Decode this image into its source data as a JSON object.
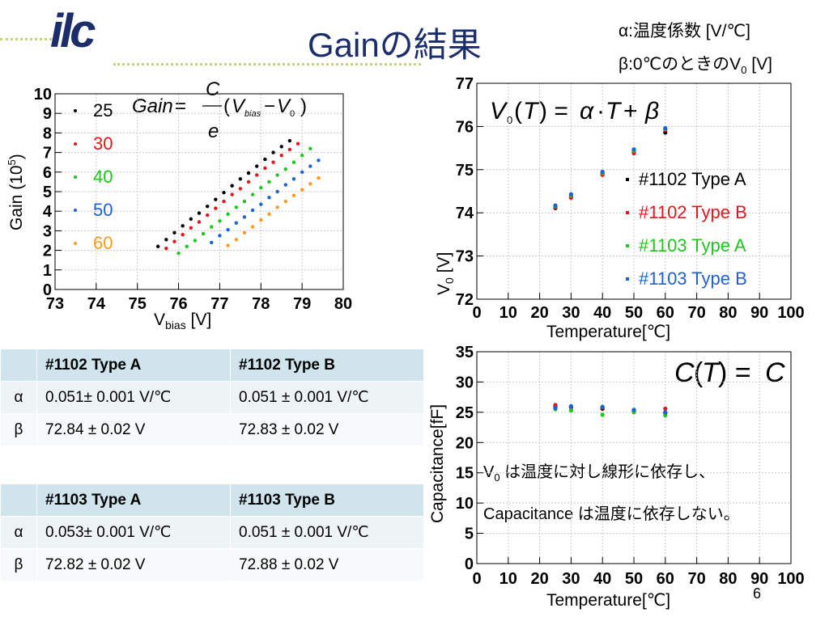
{
  "logo": {
    "text": "ilc"
  },
  "title": "Gainの結果",
  "notes": {
    "alpha": "α:温度係数 [V/℃]",
    "beta_prefix": "β:0℃のときのV",
    "beta_sub": "0",
    "beta_suffix": " [V]"
  },
  "gain_plot": {
    "ylabel": "Gain (10",
    "ylabel_sup": "5",
    "ylabel_end": ")",
    "xlabel_main": "V",
    "xlabel_sub": "bias",
    "xlabel_unit": " [V]",
    "formula": "Gain = (C/e)(Vbias − V0)"
  },
  "v0_plot": {
    "ylabel_main": "V",
    "ylabel_sub": "0",
    "ylabel_unit": " [V]",
    "xlabel": "Temperature[℃]",
    "formula": "V0(T) = α·T + β"
  },
  "cap_plot": {
    "ylabel": "Capacitance[fF]",
    "xlabel": "Temperature[℃]",
    "formula": "C(T) = C",
    "comment_line1_prefix": "V",
    "comment_line1_sub": "0",
    "comment_line1_rest": " は温度に対し線形に依存し、",
    "comment_line2": "Capacitance は温度に依存しない。"
  },
  "colors": {
    "t25": "#000000",
    "t30": "#e8141b",
    "t40": "#1ec51e",
    "t50": "#1a62d8",
    "t60": "#ff9a1e",
    "typeA1102": "#000000",
    "typeB1102": "#e8141b",
    "typeA1103": "#1ec51e",
    "typeB1103": "#1a62d8"
  },
  "chart_data": [
    {
      "type": "scatter",
      "xlabel": "Vbias [V]",
      "ylabel": "Gain (10^5)",
      "xlim": [
        73,
        80
      ],
      "ylim": [
        0,
        10
      ],
      "xticks": [
        "73",
        "74",
        "75",
        "76",
        "77",
        "78",
        "79",
        "80"
      ],
      "yticks": [
        "0",
        "1",
        "2",
        "3",
        "4",
        "5",
        "6",
        "7",
        "8",
        "9",
        "10"
      ],
      "grid": true,
      "legend": "top-left",
      "series": [
        {
          "name": "25",
          "color": "#000000",
          "points": [
            [
              75.5,
              2.2
            ],
            [
              75.7,
              2.55
            ],
            [
              75.9,
              2.9
            ],
            [
              76.1,
              3.25
            ],
            [
              76.3,
              3.6
            ],
            [
              76.5,
              3.9
            ],
            [
              76.7,
              4.25
            ],
            [
              76.9,
              4.6
            ],
            [
              77.1,
              4.95
            ],
            [
              77.3,
              5.3
            ],
            [
              77.5,
              5.65
            ],
            [
              77.7,
              5.95
            ],
            [
              77.9,
              6.3
            ],
            [
              78.1,
              6.65
            ],
            [
              78.3,
              7.0
            ],
            [
              78.5,
              7.3
            ],
            [
              78.7,
              7.6
            ]
          ]
        },
        {
          "name": "30",
          "color": "#e8141b",
          "points": [
            [
              75.7,
              2.1
            ],
            [
              75.9,
              2.45
            ],
            [
              76.1,
              2.8
            ],
            [
              76.3,
              3.15
            ],
            [
              76.5,
              3.45
            ],
            [
              76.7,
              3.8
            ],
            [
              76.9,
              4.15
            ],
            [
              77.1,
              4.5
            ],
            [
              77.3,
              4.85
            ],
            [
              77.5,
              5.15
            ],
            [
              77.7,
              5.5
            ],
            [
              77.9,
              5.85
            ],
            [
              78.1,
              6.2
            ],
            [
              78.3,
              6.5
            ],
            [
              78.5,
              6.85
            ],
            [
              78.7,
              7.15
            ],
            [
              78.9,
              7.45
            ]
          ]
        },
        {
          "name": "40",
          "color": "#1ec51e",
          "points": [
            [
              76.0,
              1.85
            ],
            [
              76.2,
              2.2
            ],
            [
              76.4,
              2.5
            ],
            [
              76.6,
              2.85
            ],
            [
              76.8,
              3.2
            ],
            [
              77.0,
              3.5
            ],
            [
              77.2,
              3.85
            ],
            [
              77.4,
              4.2
            ],
            [
              77.6,
              4.5
            ],
            [
              77.8,
              4.85
            ],
            [
              78.0,
              5.2
            ],
            [
              78.2,
              5.5
            ],
            [
              78.4,
              5.85
            ],
            [
              78.6,
              6.15
            ],
            [
              78.8,
              6.5
            ],
            [
              79.0,
              6.85
            ],
            [
              79.2,
              7.2
            ]
          ]
        },
        {
          "name": "50",
          "color": "#1a62d8",
          "points": [
            [
              76.8,
              2.4
            ],
            [
              77.0,
              2.75
            ],
            [
              77.2,
              3.05
            ],
            [
              77.4,
              3.4
            ],
            [
              77.6,
              3.7
            ],
            [
              77.8,
              4.05
            ],
            [
              78.0,
              4.35
            ],
            [
              78.2,
              4.7
            ],
            [
              78.4,
              5.0
            ],
            [
              78.6,
              5.35
            ],
            [
              78.8,
              5.65
            ],
            [
              79.0,
              6.0
            ],
            [
              79.2,
              6.3
            ],
            [
              79.4,
              6.6
            ]
          ]
        },
        {
          "name": "60",
          "color": "#ff9a1e",
          "points": [
            [
              77.2,
              2.25
            ],
            [
              77.4,
              2.55
            ],
            [
              77.6,
              2.9
            ],
            [
              77.8,
              3.2
            ],
            [
              78.0,
              3.55
            ],
            [
              78.2,
              3.85
            ],
            [
              78.4,
              4.2
            ],
            [
              78.6,
              4.5
            ],
            [
              78.8,
              4.8
            ],
            [
              79.0,
              5.1
            ],
            [
              79.2,
              5.4
            ],
            [
              79.4,
              5.7
            ]
          ]
        }
      ]
    },
    {
      "type": "scatter",
      "xlabel": "Temperature[℃]",
      "ylabel": "V0 [V]",
      "xlim": [
        0,
        100
      ],
      "ylim": [
        72,
        77
      ],
      "xticks": [
        "0",
        "10",
        "20",
        "30",
        "40",
        "50",
        "60",
        "70",
        "80",
        "90",
        "100"
      ],
      "yticks": [
        "72",
        "73",
        "74",
        "75",
        "76",
        "77"
      ],
      "grid": true,
      "legend": "right",
      "series": [
        {
          "name": "#1102 Type A",
          "color": "#000000",
          "points": [
            [
              25,
              74.11
            ],
            [
              30,
              74.37
            ],
            [
              40,
              74.9
            ],
            [
              50,
              75.4
            ],
            [
              60,
              75.86
            ]
          ]
        },
        {
          "name": "#1102 Type B",
          "color": "#e8141b",
          "points": [
            [
              25,
              74.13
            ],
            [
              30,
              74.35
            ],
            [
              40,
              74.88
            ],
            [
              50,
              75.38
            ],
            [
              60,
              75.92
            ]
          ]
        },
        {
          "name": "#1103 Type A",
          "color": "#1ec51e",
          "points": [
            [
              25,
              74.15
            ],
            [
              30,
              74.4
            ],
            [
              40,
              74.92
            ],
            [
              50,
              75.44
            ],
            [
              60,
              75.94
            ]
          ]
        },
        {
          "name": "#1103 Type B",
          "color": "#1a62d8",
          "points": [
            [
              25,
              74.17
            ],
            [
              30,
              74.43
            ],
            [
              40,
              74.95
            ],
            [
              50,
              75.47
            ],
            [
              60,
              75.96
            ]
          ]
        }
      ]
    },
    {
      "type": "scatter",
      "xlabel": "Temperature[℃]",
      "ylabel": "Capacitance[fF]",
      "xlim": [
        0,
        100
      ],
      "ylim": [
        0,
        35
      ],
      "xticks": [
        "0",
        "10",
        "20",
        "30",
        "40",
        "50",
        "60",
        "70",
        "80",
        "90",
        "100"
      ],
      "yticks": [
        "0",
        "5",
        "10",
        "15",
        "20",
        "25",
        "30",
        "35"
      ],
      "grid": true,
      "series": [
        {
          "name": "#1102 Type A",
          "color": "#000000",
          "points": [
            [
              25,
              25.9
            ],
            [
              30,
              25.8
            ],
            [
              40,
              25.6
            ],
            [
              50,
              25.2
            ],
            [
              60,
              24.9
            ]
          ]
        },
        {
          "name": "#1102 Type B",
          "color": "#e8141b",
          "points": [
            [
              25,
              26.2
            ],
            [
              30,
              25.9
            ],
            [
              40,
              25.8
            ],
            [
              50,
              25.3
            ],
            [
              60,
              25.6
            ]
          ]
        },
        {
          "name": "#1103 Type A",
          "color": "#1ec51e",
          "points": [
            [
              25,
              25.5
            ],
            [
              30,
              25.3
            ],
            [
              40,
              24.6
            ],
            [
              50,
              25.0
            ],
            [
              60,
              24.5
            ]
          ]
        },
        {
          "name": "#1103 Type B",
          "color": "#1a62d8",
          "points": [
            [
              25,
              25.7
            ],
            [
              30,
              26.0
            ],
            [
              40,
              25.9
            ],
            [
              50,
              25.4
            ],
            [
              60,
              25.0
            ]
          ]
        }
      ]
    }
  ],
  "table1": {
    "header": [
      "",
      "#1102  Type A",
      "#1102 Type B"
    ],
    "rows": [
      [
        "α",
        "0.051± 0.001 V/℃",
        "0.051 ± 0.001 V/℃"
      ],
      [
        "β",
        "72.84 ± 0.02 V",
        "72.83 ± 0.02 V"
      ]
    ]
  },
  "table2": {
    "header": [
      "",
      "#1103  Type A",
      "#1103 Type B"
    ],
    "rows": [
      [
        "α",
        "0.053± 0.001 V/℃",
        "0.051 ± 0.001 V/℃"
      ],
      [
        "β",
        "72.82 ± 0.02 V",
        "72.88 ± 0.02 V"
      ]
    ]
  },
  "page_number": "6"
}
